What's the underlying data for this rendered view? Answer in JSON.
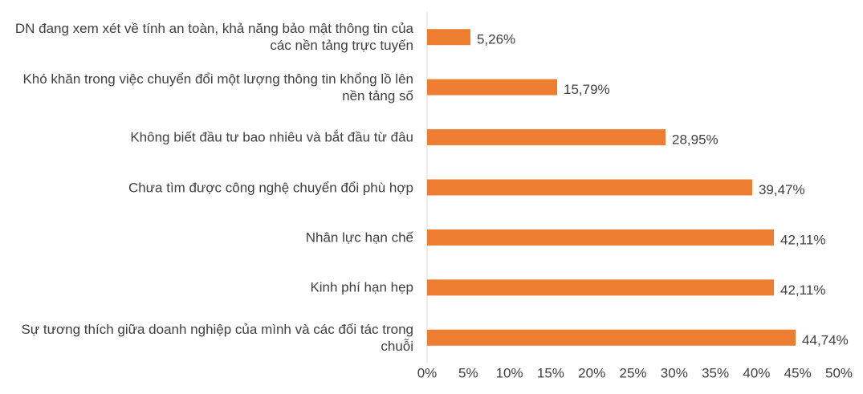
{
  "chart_data": {
    "type": "bar",
    "orientation": "horizontal",
    "categories": [
      "DN đang xem xét về tính an toàn, khả năng bảo mật thông tin của các nền tảng trực tuyến",
      "Khó khăn trong việc chuyển đổi một lượng thông tin khổng lồ lên nền tảng số",
      "Không biết đầu tư bao nhiêu và bắt đầu từ đâu",
      "Chưa tìm được công nghệ chuyển đổi phù hợp",
      "Nhân lực hạn chế",
      "Kinh phí hạn hẹp",
      "Sự tương thích giữa doanh nghiệp của mình và các đối tác trong chuỗi"
    ],
    "values": [
      5.26,
      15.79,
      28.95,
      39.47,
      42.11,
      42.11,
      44.74
    ],
    "value_labels": [
      "5,26%",
      "15,79%",
      "28,95%",
      "39,47%",
      "42,11%",
      "42,11%",
      "44,74%"
    ],
    "color": "#ed7d31",
    "xlim": [
      0,
      50
    ],
    "xticks": [
      {
        "value": 0,
        "label": "0%"
      },
      {
        "value": 5,
        "label": "5%"
      },
      {
        "value": 10,
        "label": "10%"
      },
      {
        "value": 15,
        "label": "15%"
      },
      {
        "value": 20,
        "label": "20%"
      },
      {
        "value": 25,
        "label": "25%"
      },
      {
        "value": 30,
        "label": "30%"
      },
      {
        "value": 35,
        "label": "35%"
      },
      {
        "value": 40,
        "label": "40%"
      },
      {
        "value": 45,
        "label": "45%"
      },
      {
        "value": 50,
        "label": "50%"
      }
    ],
    "grid": false
  }
}
